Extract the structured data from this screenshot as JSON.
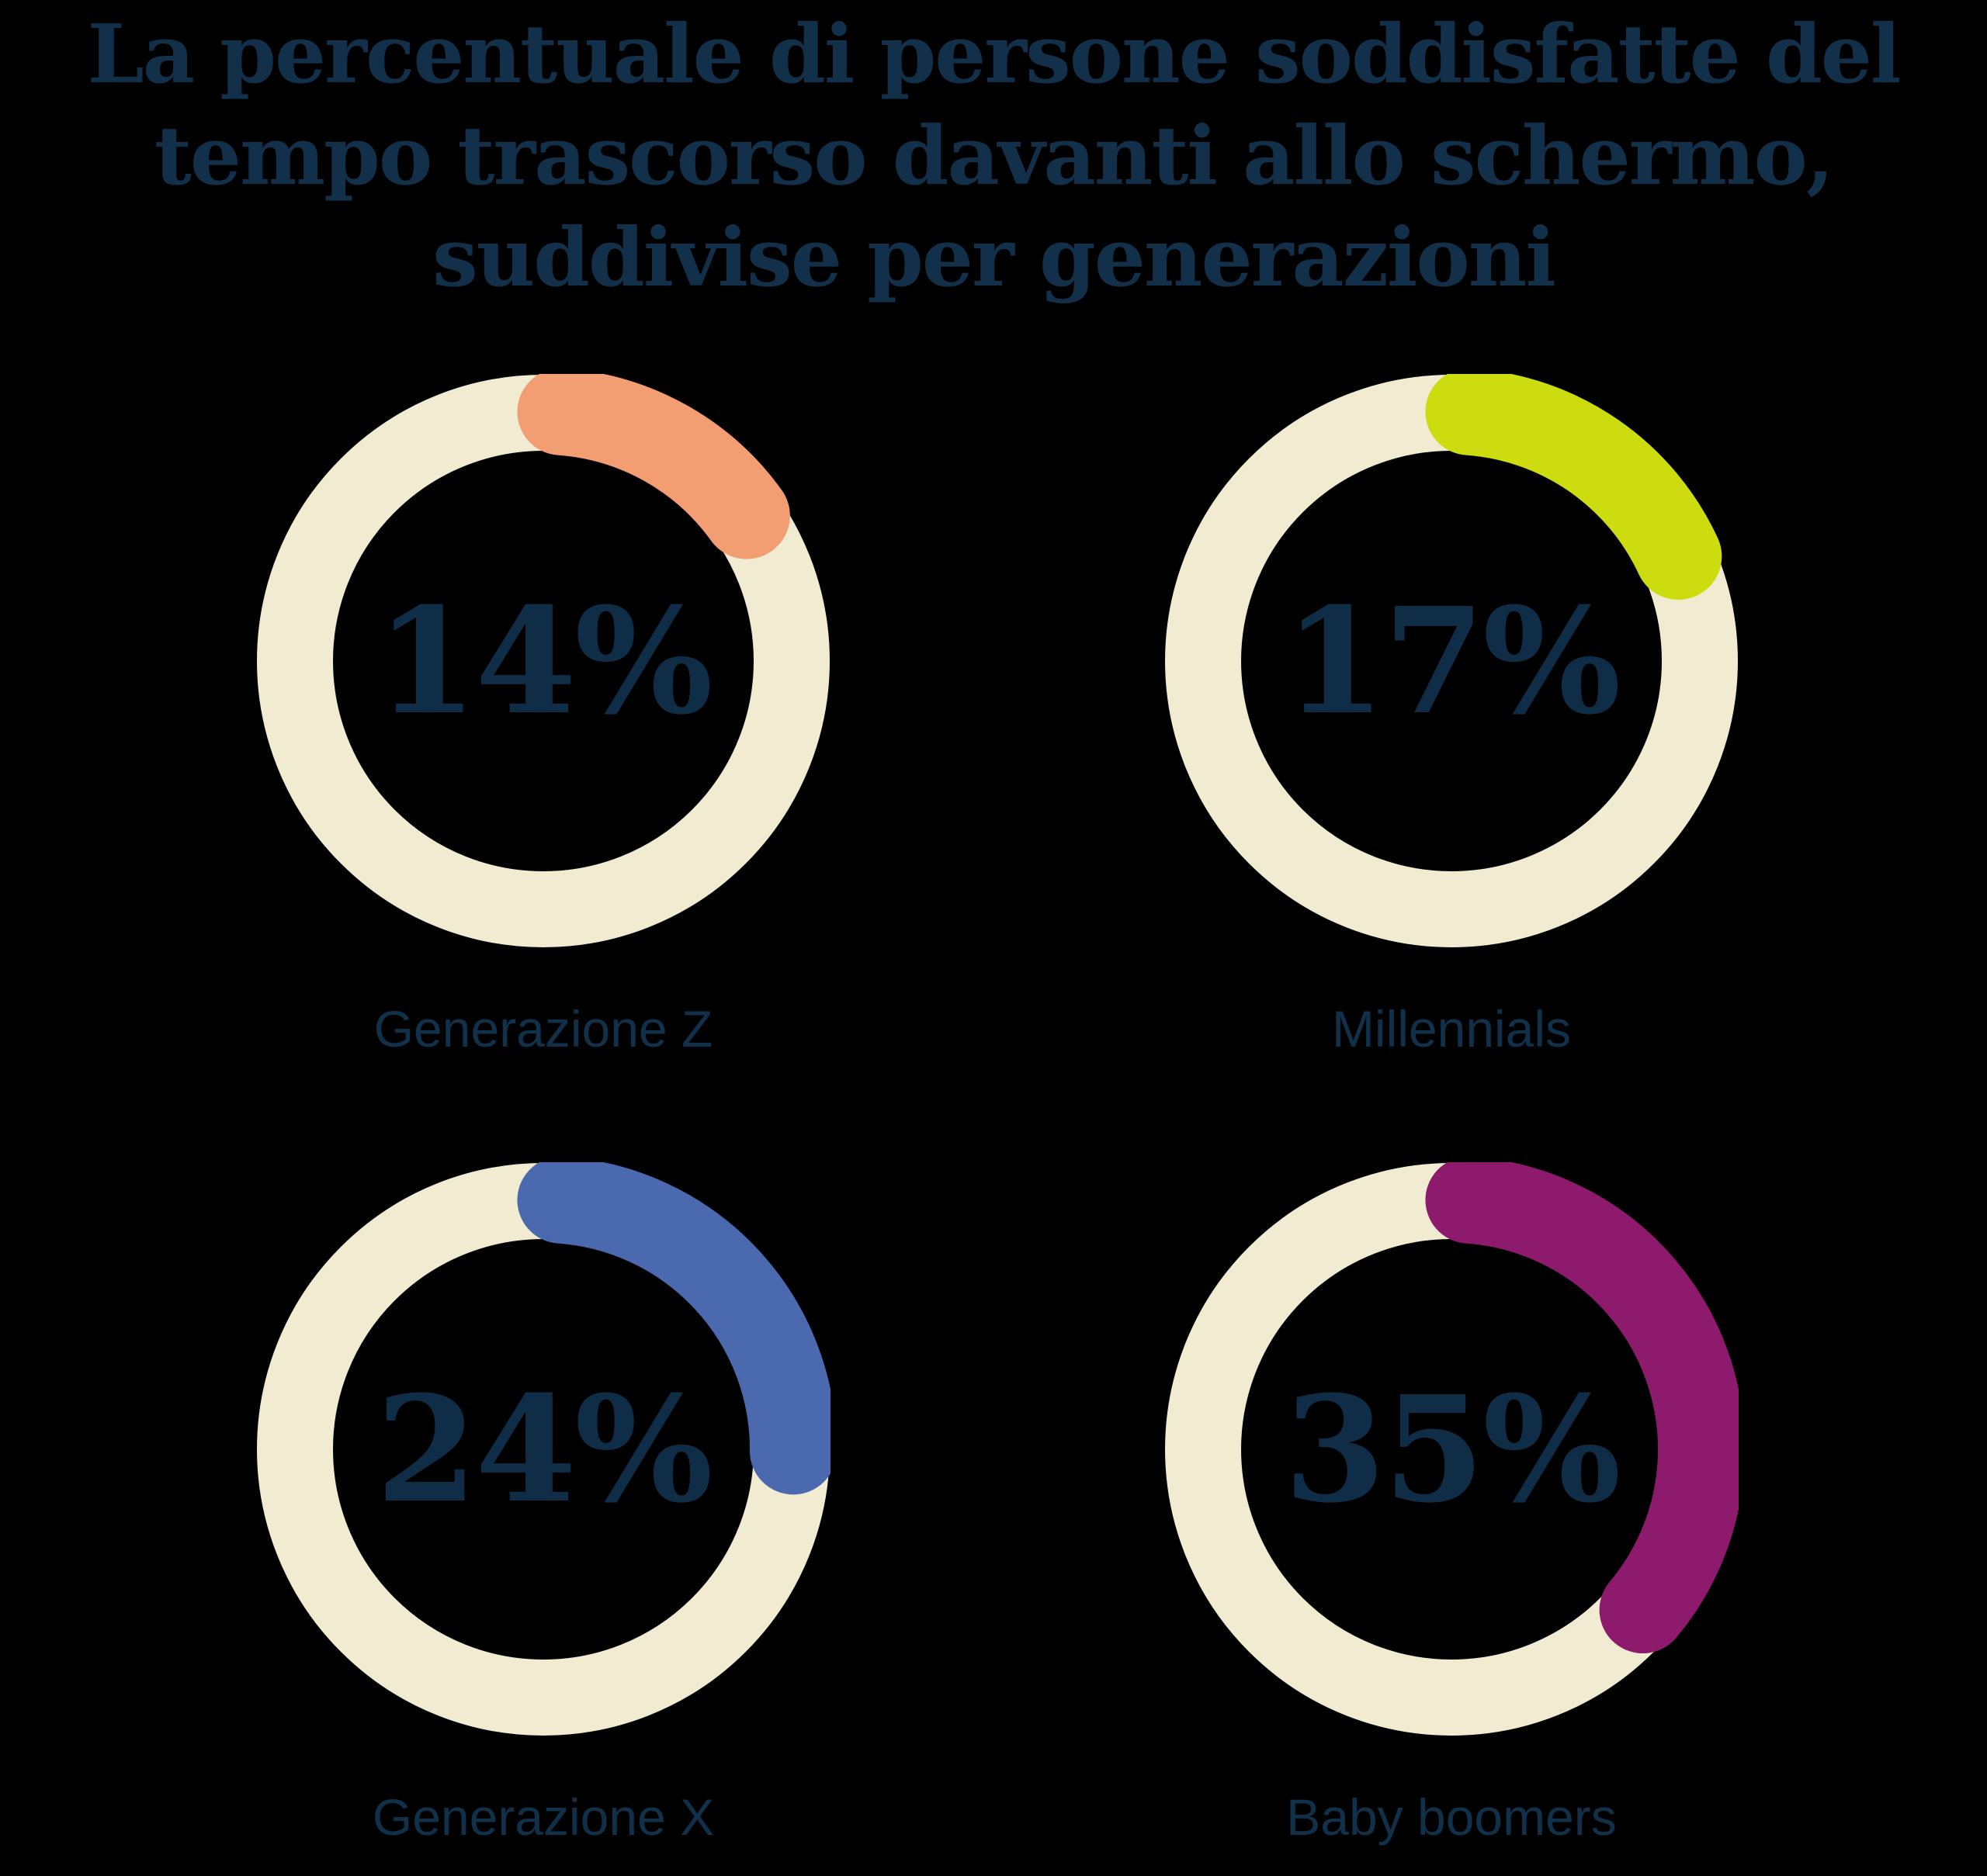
{
  "title": {
    "full": "La percentuale di persone soddisfatte del tempo trascorso davanti allo schermo, suddivise per generazioni",
    "lines": [
      "La percentuale di persone soddisfatte del",
      "tempo trascorso davanti allo schermo,",
      "suddivise per generazioni"
    ]
  },
  "colors": {
    "background": "#000000",
    "title_text": "#12304a",
    "value_text": "#0f2d47",
    "label_text": "#11304a",
    "ring_base": "#f0ebd1"
  },
  "chart_data": {
    "type": "donut",
    "title": "La percentuale di persone soddisfatte del tempo trascorso davanti allo schermo, suddivise per generazioni",
    "unit": "%",
    "start_angle": "top (12 o'clock)",
    "direction": "clockwise",
    "legend_position": "below each donut",
    "categories": [
      "Generazione Z",
      "Millennials",
      "Generazione X",
      "Baby boomers"
    ],
    "values": [
      14,
      17,
      24,
      35
    ],
    "ring_color": "#f0ebd1",
    "items": [
      {
        "label": "Generazione Z",
        "value": 14,
        "value_label": "14%",
        "arc_color": "#f39d73"
      },
      {
        "label": "Millennials",
        "value": 17,
        "value_label": "17%",
        "arc_color": "#cddc0f"
      },
      {
        "label": "Generazione X",
        "value": 24,
        "value_label": "24%",
        "arc_color": "#4b69ae"
      },
      {
        "label": "Baby boomers",
        "value": 35,
        "value_label": "35%",
        "arc_color": "#8d1a6c"
      }
    ]
  }
}
